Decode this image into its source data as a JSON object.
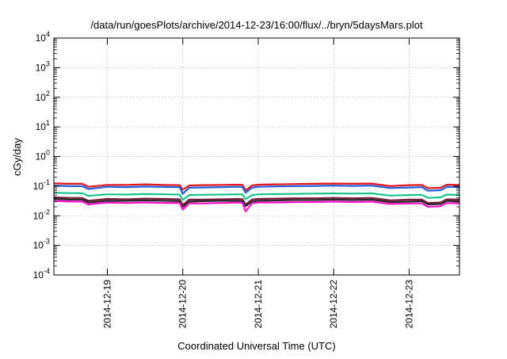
{
  "chart_data": {
    "type": "line",
    "title": "/data/run/goesPlots/archive/2014-12-23/16:00/flux/../bryn/5daysMars.plot",
    "xlabel": "Coordinated Universal Time (UTC)",
    "ylabel": "cGy/day",
    "yscale": "log",
    "ylim": [
      0.0001,
      10000
    ],
    "xlim": [
      "2014-12-18T07:00",
      "2014-12-23T16:00"
    ],
    "grid": true,
    "legend": "none",
    "ytick_labels": [
      {
        "base": "10",
        "exp": "-4",
        "value": 0.0001
      },
      {
        "base": "10",
        "exp": "-3",
        "value": 0.001
      },
      {
        "base": "10",
        "exp": "-2",
        "value": 0.01
      },
      {
        "base": "10",
        "exp": "-1",
        "value": 0.1
      },
      {
        "base": "10",
        "exp": "0",
        "value": 1
      },
      {
        "base": "10",
        "exp": "1",
        "value": 10
      },
      {
        "base": "10",
        "exp": "2",
        "value": 100
      },
      {
        "base": "10",
        "exp": "3",
        "value": 1000
      },
      {
        "base": "10",
        "exp": "4",
        "value": 10000
      }
    ],
    "xtick_labels": [
      {
        "label": "2014-12-19",
        "date": "2014-12-19T00:00"
      },
      {
        "label": "2014-12-20",
        "date": "2014-12-20T00:00"
      },
      {
        "label": "2014-12-21",
        "date": "2014-12-21T00:00"
      },
      {
        "label": "2014-12-22",
        "date": "2014-12-22T00:00"
      },
      {
        "label": "2014-12-23",
        "date": "2014-12-23T00:00"
      }
    ],
    "x": [
      "2014-12-18T07:00",
      "2014-12-18T12:00",
      "2014-12-18T16:00",
      "2014-12-18T18:00",
      "2014-12-19T00:00",
      "2014-12-19T06:00",
      "2014-12-19T12:00",
      "2014-12-19T18:00",
      "2014-12-19T23:00",
      "2014-12-20T00:00",
      "2014-12-20T02:00",
      "2014-12-20T06:00",
      "2014-12-20T12:00",
      "2014-12-20T18:00",
      "2014-12-20T19:00",
      "2014-12-20T20:00",
      "2014-12-20T22:00",
      "2014-12-21T00:00",
      "2014-12-21T06:00",
      "2014-12-21T12:00",
      "2014-12-21T18:00",
      "2014-12-22T00:00",
      "2014-12-22T06:00",
      "2014-12-22T12:00",
      "2014-12-22T18:00",
      "2014-12-23T00:00",
      "2014-12-23T04:00",
      "2014-12-23T06:00",
      "2014-12-23T10:00",
      "2014-12-23T12:00",
      "2014-12-23T16:00"
    ],
    "series": [
      {
        "color": "#e8141c",
        "values": [
          0.125,
          0.12,
          0.12,
          0.095,
          0.11,
          0.11,
          0.115,
          0.11,
          0.108,
          0.075,
          0.105,
          0.108,
          0.11,
          0.112,
          0.11,
          0.072,
          0.105,
          0.112,
          0.115,
          0.118,
          0.12,
          0.122,
          0.12,
          0.122,
          0.1,
          0.108,
          0.11,
          0.085,
          0.088,
          0.112,
          0.11
        ]
      },
      {
        "color": "#1f5fe0",
        "values": [
          0.105,
          0.1,
          0.1,
          0.08,
          0.095,
          0.093,
          0.097,
          0.094,
          0.092,
          0.055,
          0.088,
          0.09,
          0.093,
          0.095,
          0.093,
          0.06,
          0.088,
          0.095,
          0.098,
          0.1,
          0.102,
          0.104,
          0.102,
          0.104,
          0.086,
          0.09,
          0.092,
          0.07,
          0.073,
          0.095,
          0.092
        ]
      },
      {
        "color": "#17c38a",
        "values": [
          0.06,
          0.058,
          0.058,
          0.047,
          0.053,
          0.052,
          0.054,
          0.053,
          0.052,
          0.034,
          0.05,
          0.051,
          0.052,
          0.053,
          0.052,
          0.036,
          0.05,
          0.053,
          0.054,
          0.055,
          0.056,
          0.057,
          0.056,
          0.057,
          0.048,
          0.05,
          0.051,
          0.04,
          0.042,
          0.052,
          0.05
        ]
      },
      {
        "color": "#7a1d3c",
        "values": [
          0.042,
          0.04,
          0.04,
          0.032,
          0.037,
          0.036,
          0.038,
          0.037,
          0.036,
          0.023,
          0.035,
          0.035,
          0.036,
          0.037,
          0.036,
          0.024,
          0.035,
          0.037,
          0.038,
          0.039,
          0.039,
          0.04,
          0.039,
          0.04,
          0.033,
          0.035,
          0.035,
          0.027,
          0.028,
          0.036,
          0.035
        ]
      },
      {
        "color": "#2a2a2a",
        "values": [
          0.037,
          0.035,
          0.035,
          0.028,
          0.032,
          0.032,
          0.033,
          0.032,
          0.031,
          0.02,
          0.03,
          0.031,
          0.032,
          0.032,
          0.031,
          0.021,
          0.03,
          0.032,
          0.033,
          0.034,
          0.034,
          0.035,
          0.034,
          0.035,
          0.029,
          0.03,
          0.031,
          0.024,
          0.025,
          0.032,
          0.03
        ]
      },
      {
        "color": "#ff10d0",
        "values": [
          0.032,
          0.03,
          0.03,
          0.024,
          0.028,
          0.027,
          0.028,
          0.027,
          0.027,
          0.016,
          0.026,
          0.026,
          0.027,
          0.028,
          0.027,
          0.014,
          0.026,
          0.028,
          0.028,
          0.029,
          0.029,
          0.03,
          0.029,
          0.03,
          0.025,
          0.026,
          0.026,
          0.02,
          0.021,
          0.027,
          0.026
        ]
      }
    ]
  }
}
